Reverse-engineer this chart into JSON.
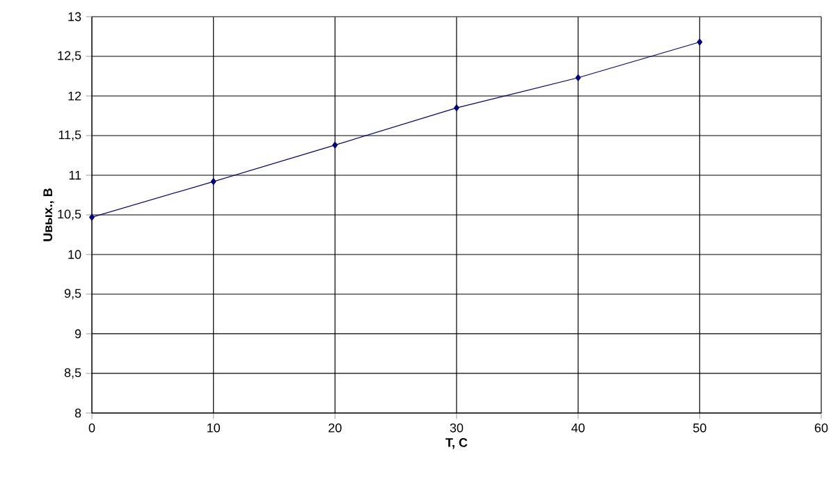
{
  "chart_data": {
    "type": "line",
    "xlabel": "T, C",
    "ylabel": "Uвых., В",
    "x": [
      0,
      10,
      20,
      30,
      40,
      50
    ],
    "series": [
      {
        "color": "#000080",
        "values": [
          10.47,
          10.92,
          11.38,
          11.85,
          12.23,
          12.68
        ]
      }
    ],
    "xlim": [
      0,
      60
    ],
    "xticks": [
      0,
      10,
      20,
      30,
      40,
      50,
      60
    ],
    "ylim": [
      8,
      13
    ],
    "yticks": [
      8,
      {
        "value": 8.5,
        "label": "8,5"
      },
      9,
      {
        "value": 9.5,
        "label": "9,5"
      },
      10,
      {
        "value": 10.5,
        "label": "10,5"
      },
      11,
      {
        "value": 11.5,
        "label": "11,5"
      },
      12,
      {
        "value": 12.5,
        "label": "12,5"
      },
      13
    ],
    "grid": true,
    "marker": "diamond",
    "line_style": "solid"
  }
}
